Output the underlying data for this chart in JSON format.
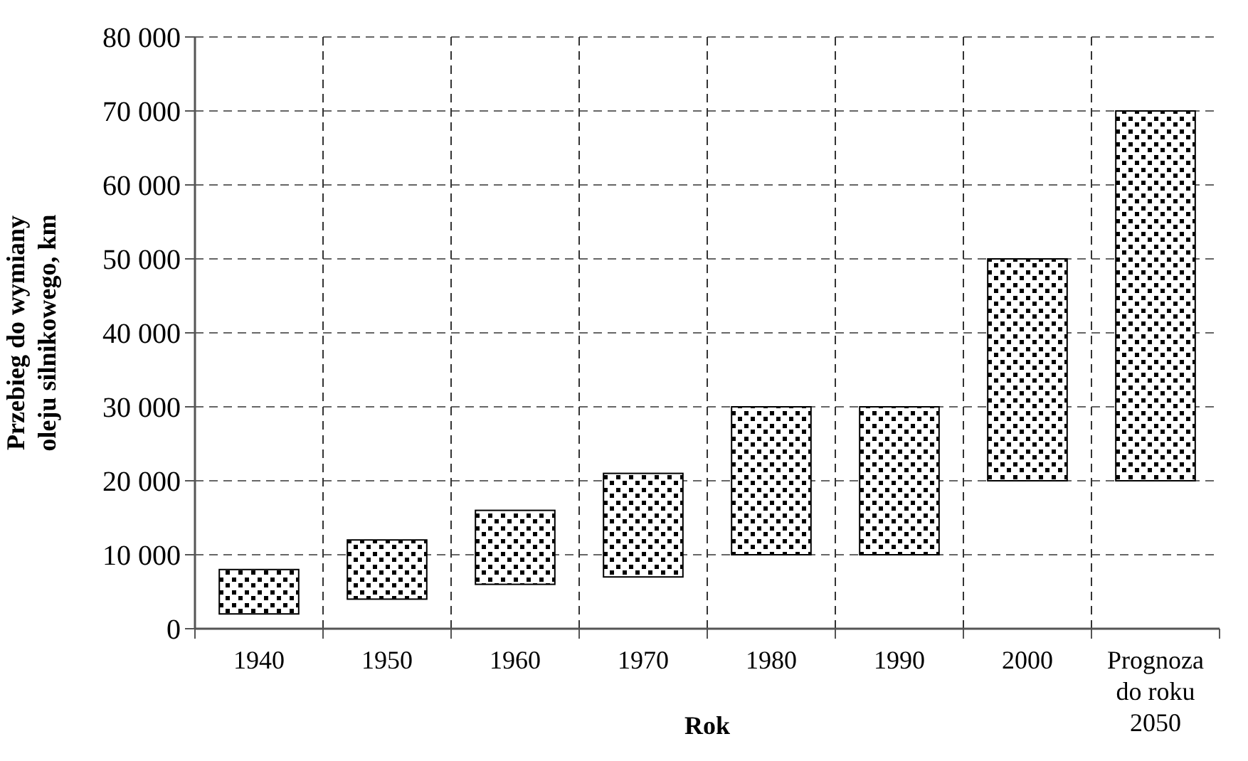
{
  "chart_data": {
    "type": "bar",
    "xlabel": "Rok",
    "ylabel": "Przebieg do wymiany oleju silnikowego, km",
    "categories": [
      "1940",
      "1950",
      "1960",
      "1970",
      "1980",
      "1990",
      "2000",
      "Prognoza do roku 2050"
    ],
    "base": [
      2000,
      4000,
      6000,
      7000,
      10000,
      10000,
      20000,
      20000
    ],
    "values": [
      6000,
      8000,
      10000,
      14000,
      20000,
      20000,
      30000,
      50000
    ],
    "color": "#000000",
    "ylim": [
      0,
      80000
    ],
    "yticks": [
      {
        "value": 0,
        "label": "0"
      },
      {
        "value": 10000,
        "label": "10 000"
      },
      {
        "value": 20000,
        "label": "20 000"
      },
      {
        "value": 30000,
        "label": "30 000"
      },
      {
        "value": 40000,
        "label": "40 000"
      },
      {
        "value": 50000,
        "label": "50 000"
      },
      {
        "value": 60000,
        "label": "60 000"
      },
      {
        "value": 70000,
        "label": "70 000"
      },
      {
        "value": 80000,
        "label": "80 000"
      }
    ],
    "grid": true
  }
}
